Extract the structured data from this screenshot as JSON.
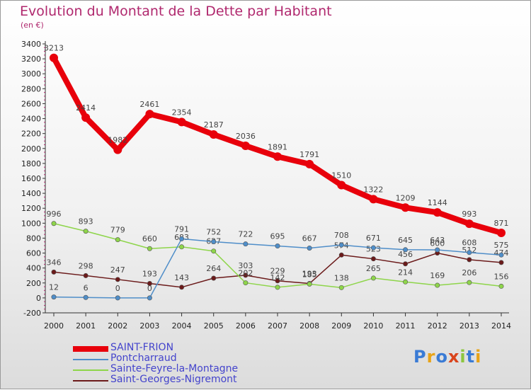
{
  "title": "Evolution du Montant de la Dette par Habitant",
  "subtitle": "(en €)",
  "brand": {
    "letters": [
      "P",
      "r",
      "o",
      "x",
      "i",
      "t",
      "i"
    ],
    "colors": [
      "#3a7bd5",
      "#e8a317",
      "#3a7bd5",
      "#d9441c",
      "#8cc63f",
      "#3a7bd5",
      "#e8a317"
    ]
  },
  "chart_data": {
    "type": "line",
    "title": "Evolution du Montant de la Dette par Habitant",
    "ylabel": "(en €)",
    "x": [
      2000,
      2001,
      2002,
      2003,
      2004,
      2005,
      2006,
      2007,
      2008,
      2009,
      2010,
      2011,
      2012,
      2013,
      2014
    ],
    "ylim": [
      -200,
      3400
    ],
    "yticks": [
      -200,
      0,
      200,
      400,
      600,
      800,
      1000,
      1200,
      1400,
      1600,
      1800,
      2000,
      2200,
      2400,
      2600,
      2800,
      3000,
      3200,
      3400
    ],
    "grid": false,
    "legend_position": "bottom-left",
    "series": [
      {
        "name": "SAINT-FRION",
        "color": "#e8000b",
        "values": [
          3213,
          2414,
          1982,
          2461,
          2354,
          2187,
          2036,
          1891,
          1791,
          1510,
          1322,
          1209,
          1144,
          993,
          871
        ]
      },
      {
        "name": "Pontcharraud",
        "color": "#4f8ec9",
        "values": [
          12,
          6,
          0,
          0,
          791,
          752,
          722,
          695,
          667,
          708,
          671,
          645,
          643,
          608,
          575
        ]
      },
      {
        "name": "Sainte-Feyre-la-Montagne",
        "color": "#8ed54a",
        "values": [
          996,
          893,
          779,
          660,
          683,
          627,
          202,
          142,
          185,
          138,
          265,
          214,
          169,
          206,
          156
        ]
      },
      {
        "name": "Saint-Georges-Nigremont",
        "color": "#6b1a1a",
        "values": [
          346,
          298,
          247,
          193,
          143,
          264,
          303,
          229,
          193,
          574,
          523,
          456,
          600,
          512,
          474
        ]
      }
    ]
  }
}
